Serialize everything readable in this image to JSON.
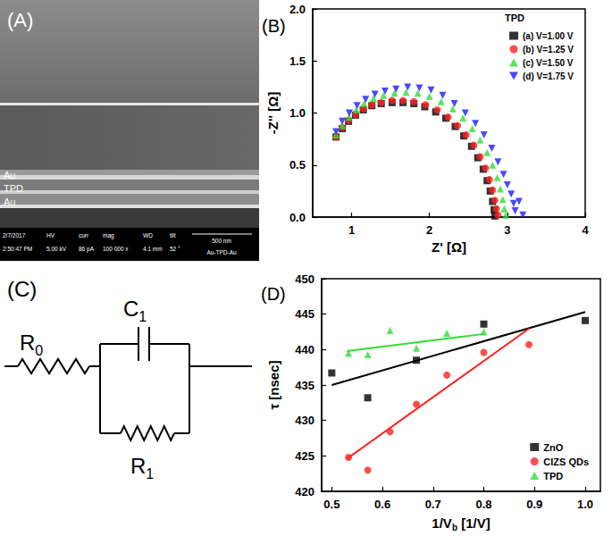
{
  "panel_a": {
    "label": "(A)",
    "layers": [
      "Au",
      "TPD",
      "Au"
    ],
    "footer": [
      [
        "2/7/2017",
        "HV",
        "curr",
        "mag",
        "WD",
        "tilt"
      ],
      [
        "2:50:47 PM",
        "5.00 kV",
        "86 pA",
        "100 000 x",
        "4.1 mm",
        "52 °"
      ]
    ],
    "scale_bar": "500 nm",
    "sample": "Au-TPD-Au"
  },
  "panel_c": {
    "label": "(C)",
    "components": [
      {
        "main": "R",
        "sub": "0"
      },
      {
        "main": "C",
        "sub": "1"
      },
      {
        "main": "R",
        "sub": "1"
      }
    ]
  },
  "chart_data": [
    {
      "type": "scatter",
      "annotation": "(B)",
      "xlabel": "Z' [Ω]",
      "ylabel": "-Z'' [Ω]",
      "xlim": [
        0.5,
        4
      ],
      "xticks": [
        1,
        2,
        3,
        4
      ],
      "ylim": [
        0,
        2
      ],
      "yticks": [
        {
          "value": 0,
          "label": "0.0"
        },
        0.5,
        {
          "value": 1,
          "label": "1.0"
        },
        1.5,
        {
          "value": 2,
          "label": "2.0"
        }
      ],
      "grid": false,
      "legend": "upper right",
      "legend_title": "TPD",
      "series": [
        {
          "name": "(a) V=1.00 V",
          "color": "#000000",
          "marker": "square",
          "x": [
            0.8,
            0.88,
            0.96,
            1.05,
            1.15,
            1.26,
            1.38,
            1.52,
            1.66,
            1.8,
            1.94,
            2.08,
            2.21,
            2.33,
            2.44,
            2.54,
            2.62,
            2.69,
            2.74,
            2.78,
            2.81,
            2.83,
            2.84
          ],
          "values": [
            0.77,
            0.85,
            0.92,
            0.98,
            1.03,
            1.07,
            1.09,
            1.1,
            1.1,
            1.09,
            1.06,
            1.01,
            0.95,
            0.87,
            0.78,
            0.68,
            0.57,
            0.46,
            0.35,
            0.25,
            0.15,
            0.07,
            0.01
          ]
        },
        {
          "name": "(b) V=1.25 V",
          "color": "#ff2020",
          "marker": "circle",
          "x": [
            0.8,
            0.88,
            0.96,
            1.05,
            1.15,
            1.26,
            1.38,
            1.52,
            1.66,
            1.8,
            1.95,
            2.1,
            2.24,
            2.36,
            2.47,
            2.57,
            2.65,
            2.72,
            2.77,
            2.81,
            2.84,
            2.86,
            2.88
          ],
          "values": [
            0.77,
            0.86,
            0.93,
            0.99,
            1.04,
            1.08,
            1.1,
            1.12,
            1.12,
            1.11,
            1.08,
            1.03,
            0.96,
            0.88,
            0.79,
            0.69,
            0.58,
            0.47,
            0.36,
            0.26,
            0.16,
            0.08,
            0.02
          ]
        },
        {
          "name": "(c) V=1.50 V",
          "color": "#33dd33",
          "marker": "triangle",
          "x": [
            0.8,
            0.88,
            0.97,
            1.06,
            1.16,
            1.28,
            1.41,
            1.55,
            1.7,
            1.85,
            2.0,
            2.15,
            2.3,
            2.43,
            2.55,
            2.65,
            2.74,
            2.81,
            2.87,
            2.91,
            2.94,
            2.96,
            2.98
          ],
          "values": [
            0.79,
            0.88,
            0.96,
            1.03,
            1.09,
            1.14,
            1.17,
            1.19,
            1.2,
            1.19,
            1.16,
            1.11,
            1.04,
            0.95,
            0.85,
            0.74,
            0.62,
            0.5,
            0.38,
            0.27,
            0.17,
            0.08,
            0.02
          ]
        },
        {
          "name": "(d) V=1.75 V",
          "color": "#1a1aff",
          "marker": "triangle-down",
          "x": [
            0.8,
            0.88,
            0.97,
            1.07,
            1.18,
            1.3,
            1.43,
            1.57,
            1.72,
            1.87,
            2.02,
            2.17,
            2.32,
            2.46,
            2.59,
            2.7,
            2.8,
            2.88,
            2.95,
            3.0,
            3.05,
            3.08,
            3.1,
            3.15,
            3.2
          ],
          "values": [
            0.82,
            0.92,
            1.0,
            1.07,
            1.13,
            1.18,
            1.21,
            1.23,
            1.25,
            1.24,
            1.22,
            1.17,
            1.09,
            1.0,
            0.9,
            0.79,
            0.66,
            0.53,
            0.41,
            0.31,
            0.22,
            0.13,
            0.06,
            0.15,
            0.02
          ]
        }
      ]
    },
    {
      "type": "scatter",
      "annotation": "(D)",
      "xlabel": {
        "main": "1/V",
        "sub": "b",
        "rest": " [1/V]"
      },
      "ylabel": "τ [nsec]",
      "xlim": [
        0.48,
        1.03
      ],
      "xticks": [
        0.5,
        0.6,
        0.7,
        0.8,
        0.9,
        {
          "value": 1,
          "label": "1.0"
        }
      ],
      "ylim": [
        420,
        450
      ],
      "yticks": [
        420,
        425,
        430,
        435,
        440,
        445,
        450
      ],
      "grid": false,
      "legend": "lower right",
      "series": [
        {
          "name": "ZnO",
          "color": "#000000",
          "marker": "square",
          "x": [
            0.5,
            0.571,
            0.667,
            0.8,
            1.0
          ],
          "values": [
            436.7,
            433.2,
            438.5,
            443.6,
            444.1
          ],
          "fit": {
            "x": [
              0.5,
              1.0
            ],
            "values": [
              435.0,
              445.3
            ]
          }
        },
        {
          "name": "CIZS QDs",
          "color": "#ff2020",
          "marker": "circle",
          "x": [
            0.533,
            0.571,
            0.615,
            0.667,
            0.727,
            0.8,
            0.889
          ],
          "values": [
            424.8,
            423.0,
            428.4,
            432.3,
            436.4,
            439.6,
            440.7
          ],
          "fit": {
            "x": [
              0.53,
              0.89
            ],
            "values": [
              424.6,
              443.0
            ]
          }
        },
        {
          "name": "TPD",
          "color": "#33dd33",
          "marker": "triangle",
          "x": [
            0.533,
            0.571,
            0.615,
            0.667,
            0.727,
            0.8
          ],
          "values": [
            439.5,
            439.3,
            442.7,
            440.2,
            442.3,
            442.5
          ],
          "fit": {
            "x": [
              0.53,
              0.8
            ],
            "values": [
              439.8,
              442.2
            ]
          }
        }
      ]
    }
  ]
}
